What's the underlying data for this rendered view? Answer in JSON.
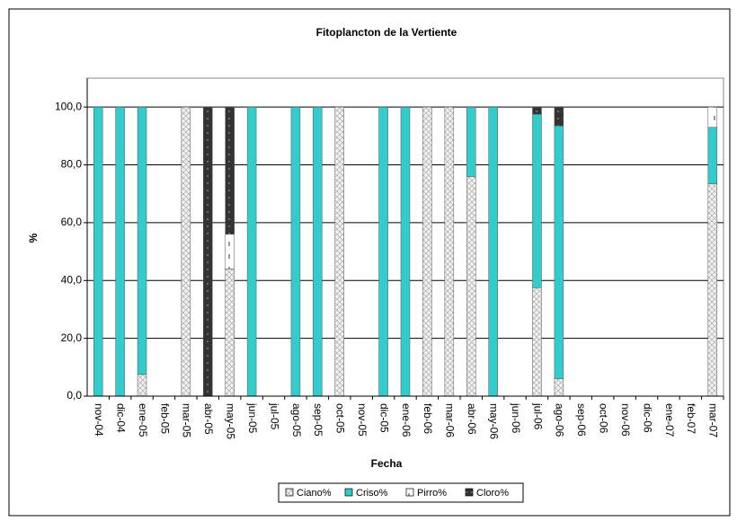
{
  "chart_data": {
    "type": "stacked_bar",
    "title": "Fitoplancton de la Vertiente",
    "x_label": "Fecha",
    "y_label": "%",
    "categories": [
      "nov-04",
      "dic-04",
      "ene-05",
      "feb-05",
      "mar-05",
      "abr-05",
      "may-05",
      "jun-05",
      "jul-05",
      "ago-05",
      "sep-05",
      "oct-05",
      "nov-05",
      "dic-05",
      "ene-06",
      "feb-06",
      "mar-06",
      "abr-06",
      "may-06",
      "jun-06",
      "jul-06",
      "ago-06",
      "sep-06",
      "oct-06",
      "nov-06",
      "dic-06",
      "ene-07",
      "feb-07",
      "mar-07"
    ],
    "series": [
      {
        "name": "Ciano%",
        "color": "#e8e8e8",
        "values": [
          0,
          0,
          7.5,
          0,
          100,
          0,
          44,
          0,
          0,
          0,
          0,
          100,
          0,
          0,
          0,
          100,
          100,
          76,
          0,
          0,
          37.5,
          6,
          0,
          0,
          0,
          0,
          0,
          0,
          73.5
        ]
      },
      {
        "name": "Criso%",
        "color": "#33cccc",
        "values": [
          100,
          100,
          92.5,
          0,
          0,
          0,
          0,
          100,
          0,
          100,
          100,
          0,
          0,
          100,
          100,
          0,
          0,
          24,
          100,
          0,
          60,
          87.5,
          0,
          0,
          0,
          0,
          0,
          0,
          19.5
        ]
      },
      {
        "name": "Pirro%",
        "color": "#ffffff",
        "values": [
          0,
          0,
          0,
          0,
          0,
          0,
          12,
          0,
          0,
          0,
          0,
          0,
          0,
          0,
          0,
          0,
          0,
          0,
          0,
          0,
          0,
          0,
          0,
          0,
          0,
          0,
          0,
          0,
          7
        ]
      },
      {
        "name": "Cloro%",
        "color": "#333333",
        "values": [
          0,
          0,
          0,
          0,
          0,
          100,
          44,
          0,
          0,
          0,
          0,
          0,
          0,
          0,
          0,
          0,
          0,
          0,
          0,
          0,
          2.5,
          6.5,
          0,
          0,
          0,
          0,
          0,
          0,
          0
        ]
      }
    ],
    "ylim": [
      0,
      110
    ],
    "yticks": [
      {
        "value": 0,
        "label": "0,0"
      },
      {
        "value": 20,
        "label": "20,0"
      },
      {
        "value": 40,
        "label": "40,0"
      },
      {
        "value": 60,
        "label": "60,0"
      },
      {
        "value": 80,
        "label": "80,0"
      },
      {
        "value": 100,
        "label": "100,0"
      }
    ],
    "grid": true,
    "legend": "bottom"
  }
}
